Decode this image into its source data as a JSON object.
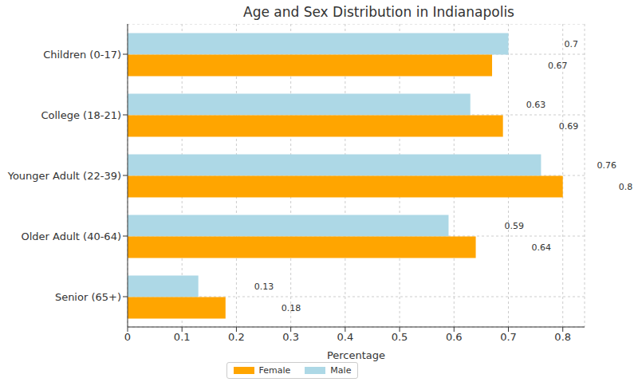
{
  "chart_data": {
    "type": "bar",
    "title": "Age and Sex Distribution in Indianapolis",
    "x_label": "Percentage",
    "categories": [
      "Children (0-17)",
      "College (18-21)",
      "Younger Adult (22-39)",
      "Older Adult (40-64)",
      "Senior (65+)"
    ],
    "series": [
      {
        "name": "Female",
        "color": "#ffa500",
        "values": [
          0.67,
          0.69,
          0.8,
          0.64,
          0.18
        ]
      },
      {
        "name": "Male",
        "color": "#add8e6",
        "values": [
          0.7,
          0.63,
          0.76,
          0.59,
          0.13
        ]
      }
    ],
    "xlim": [
      0,
      0.84
    ],
    "xticks": [
      0,
      0.1,
      0.2,
      0.3,
      0.4,
      0.5,
      0.6,
      0.7,
      0.8
    ],
    "orientation": "horizontal",
    "grid": true,
    "data_labels": true,
    "legend": "bottom"
  }
}
